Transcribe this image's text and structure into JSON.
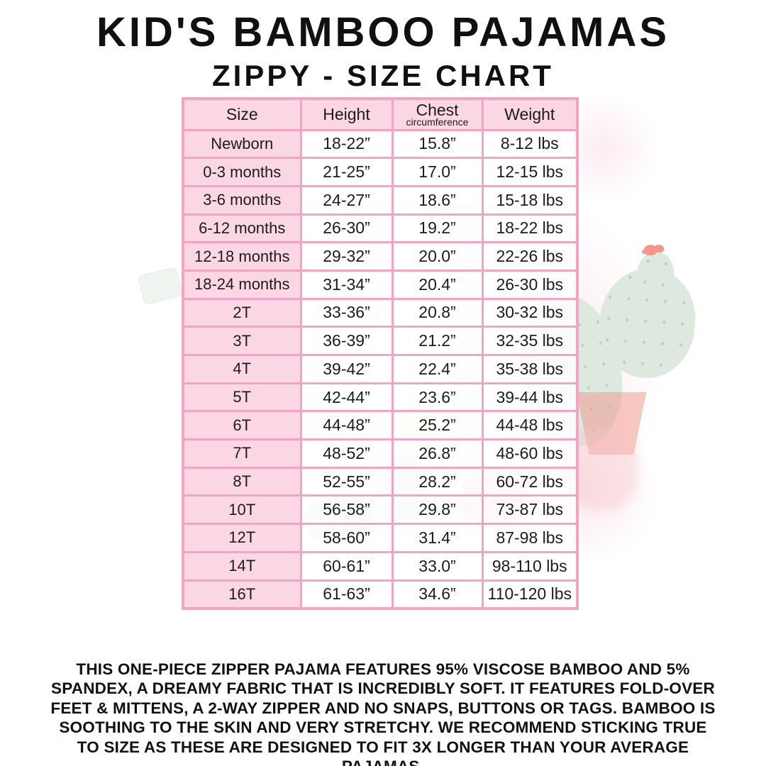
{
  "page": {
    "title": "KID'S BAMBOO PAJAMAS",
    "subtitle": "ZIPPY - SIZE CHART"
  },
  "size_chart": {
    "columns": [
      "Size",
      "Height",
      "Chest",
      "Weight"
    ],
    "chest_subheader": "circumference",
    "rows": [
      {
        "size": "Newborn",
        "height": "18-22”",
        "chest": "15.8”",
        "weight": "8-12 lbs"
      },
      {
        "size": "0-3 months",
        "height": "21-25”",
        "chest": "17.0”",
        "weight": "12-15 lbs"
      },
      {
        "size": "3-6 months",
        "height": "24-27”",
        "chest": "18.6”",
        "weight": "15-18 lbs"
      },
      {
        "size": "6-12 months",
        "height": "26-30”",
        "chest": "19.2”",
        "weight": "18-22 lbs"
      },
      {
        "size": "12-18 months",
        "height": "29-32”",
        "chest": "20.0”",
        "weight": "22-26 lbs"
      },
      {
        "size": "18-24 months",
        "height": "31-34”",
        "chest": "20.4”",
        "weight": "26-30 lbs"
      },
      {
        "size": "2T",
        "height": "33-36”",
        "chest": "20.8”",
        "weight": "30-32 lbs"
      },
      {
        "size": "3T",
        "height": "36-39”",
        "chest": "21.2”",
        "weight": "32-35 lbs"
      },
      {
        "size": "4T",
        "height": "39-42”",
        "chest": "22.4”",
        "weight": "35-38 lbs"
      },
      {
        "size": "5T",
        "height": "42-44”",
        "chest": "23.6”",
        "weight": "39-44 lbs"
      },
      {
        "size": "6T",
        "height": "44-48”",
        "chest": "25.2”",
        "weight": "44-48 lbs"
      },
      {
        "size": "7T",
        "height": "48-52”",
        "chest": "26.8”",
        "weight": "48-60 lbs"
      },
      {
        "size": "8T",
        "height": "52-55”",
        "chest": "28.2”",
        "weight": "60-72 lbs"
      },
      {
        "size": "10T",
        "height": "56-58”",
        "chest": "29.8”",
        "weight": "73-87 lbs"
      },
      {
        "size": "12T",
        "height": "58-60”",
        "chest": "31.4”",
        "weight": "87-98 lbs"
      },
      {
        "size": "14T",
        "height": "60-61”",
        "chest": "33.0”",
        "weight": "98-110 lbs"
      },
      {
        "size": "16T",
        "height": "61-63”",
        "chest": "34.6”",
        "weight": "110-120 lbs"
      }
    ]
  },
  "description": "THIS ONE-PIECE ZIPPER PAJAMA FEATURES 95% VISCOSE BAMBOO AND 5% SPANDEX, A DREAMY FABRIC THAT IS INCREDIBLY SOFT. IT FEATURES FOLD-OVER FEET & MITTENS, A 2-WAY ZIPPER AND NO SNAPS, BUTTONS OR TAGS. BAMBOO IS SOOTHING TO THE SKIN AND VERY STRETCHY. WE RECOMMEND STICKING TRUE TO SIZE AS THESE ARE DESIGNED TO FIT 3X LONGER THAN YOUR AVERAGE PAJAMAS.",
  "colors": {
    "cell_pink": "#fbd6e3",
    "border_pink": "#f5a3c2",
    "text_dark": "#1c1c1c",
    "watermark_green": "#dde9df",
    "watermark_flower": "#f6938b",
    "watermark_pot": "#f09488"
  }
}
